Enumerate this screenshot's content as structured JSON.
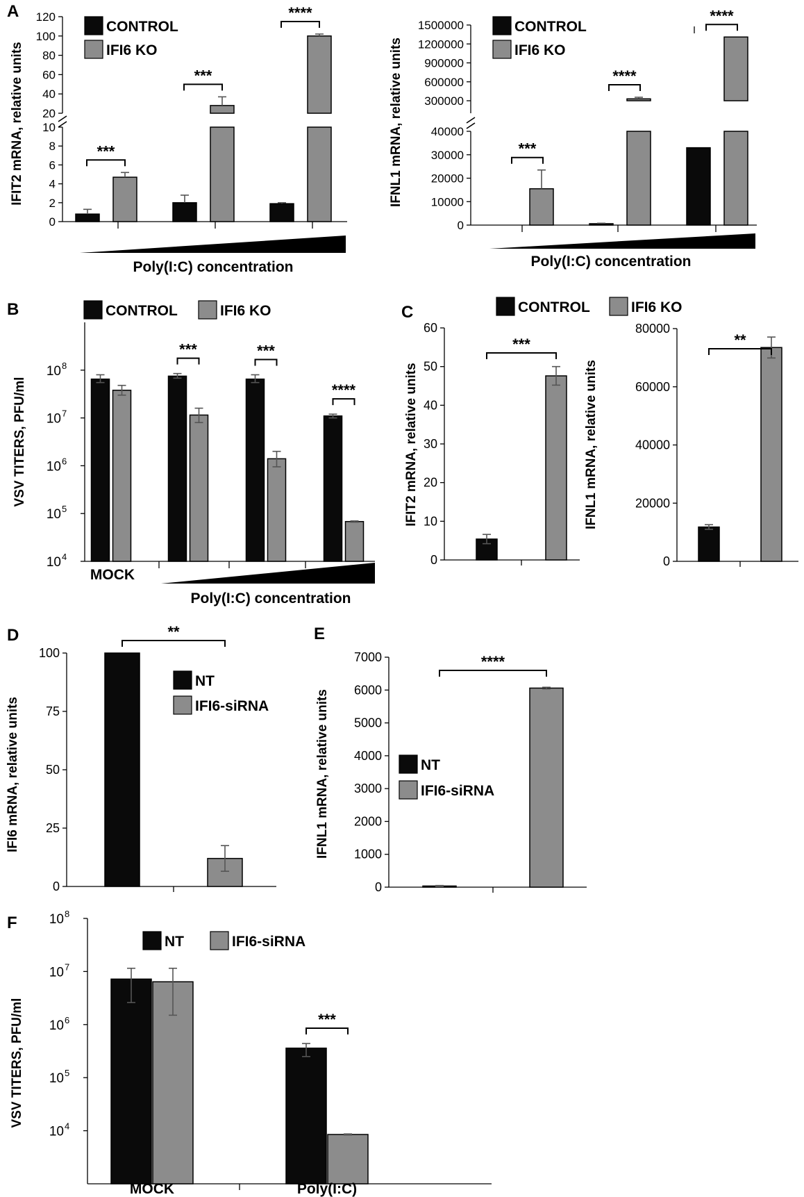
{
  "chart_data": [
    {
      "panel": "A",
      "type": "bar",
      "axis_break": true,
      "ylabel": "IFIT2 mRNA, relative units",
      "xlabel": "Poly(I:C) concentration",
      "yticks_lower": [
        "0",
        "2",
        "4",
        "6",
        "8",
        "10"
      ],
      "yticks_upper": [
        "20",
        "40",
        "60",
        "80",
        "100",
        "120"
      ],
      "legend": [
        "CONTROL",
        "IFI6 KO"
      ],
      "series": [
        {
          "name": "CONTROL",
          "values": [
            0.8,
            2.0,
            1.9
          ],
          "errors": [
            0.5,
            0.8,
            0.1
          ]
        },
        {
          "name": "IFI6 KO",
          "values": [
            4.7,
            28,
            100
          ],
          "errors": [
            0.5,
            9,
            2
          ]
        }
      ],
      "significance": [
        "***",
        "***",
        "****"
      ]
    },
    {
      "panel": "A",
      "type": "bar",
      "axis_break": true,
      "ylabel": "IFNL1 mRNA, relative units",
      "xlabel": "Poly(I:C) concentration",
      "yticks_lower": [
        "0",
        "10000",
        "20000",
        "30000",
        "40000"
      ],
      "yticks_upper": [
        "300000",
        "600000",
        "900000",
        "1200000",
        "1500000"
      ],
      "legend": [
        "CONTROL",
        "IFI6 KO"
      ],
      "series": [
        {
          "name": "CONTROL",
          "values": [
            0,
            600,
            33000
          ],
          "errors": [
            0,
            200,
            0
          ]
        },
        {
          "name": "IFI6 KO",
          "values": [
            15500,
            330000,
            1310000
          ],
          "errors": [
            8000,
            25000,
            0
          ]
        }
      ],
      "significance": [
        "***",
        "****",
        "****"
      ]
    },
    {
      "panel": "B",
      "type": "bar",
      "log_scale": true,
      "ylabel": "VSV TITERS, PFU/ml",
      "xlabel": "Poly(I:C) concentration",
      "categories": [
        "MOCK",
        "",
        "",
        ""
      ],
      "ytick_exponents": [
        "4",
        "5",
        "6",
        "7",
        "8"
      ],
      "ytick_base": "10",
      "ylim": [
        10000,
        1000000000
      ],
      "legend": [
        "CONTROL",
        "IFI6 KO"
      ],
      "series": [
        {
          "name": "CONTROL",
          "values": [
            65000000,
            75000000,
            65000000,
            11000000
          ],
          "errors_up": [
            80000000,
            85000000,
            80000000,
            12000000
          ],
          "errors_down": [
            55000000,
            68000000,
            55000000,
            10000000
          ]
        },
        {
          "name": "IFI6 KO",
          "values": [
            38000000,
            11500000,
            1400000,
            68000
          ],
          "errors_up": [
            48000000,
            16000000,
            2000000,
            70000
          ],
          "errors_down": [
            30000000,
            8000000,
            950000,
            66000
          ]
        }
      ],
      "significance": [
        "",
        "***",
        "***",
        "****"
      ]
    },
    {
      "panel": "C",
      "type": "bar",
      "ylabel": "IFIT2 mRNA, relative units",
      "yticks": [
        "0",
        "10",
        "20",
        "30",
        "40",
        "50",
        "60"
      ],
      "ylim": [
        0,
        60
      ],
      "legend": [
        "CONTROL",
        "IFI6 KO"
      ],
      "series": [
        {
          "name": "CONTROL",
          "values": [
            5.4
          ],
          "errors": [
            1.2
          ]
        },
        {
          "name": "IFI6 KO",
          "values": [
            47.6
          ],
          "errors": [
            2.4
          ]
        }
      ],
      "significance": "***"
    },
    {
      "panel": "C",
      "type": "bar",
      "ylabel": "IFNL1 mRNA, relative units",
      "yticks": [
        "0",
        "20000",
        "40000",
        "60000",
        "80000"
      ],
      "ylim": [
        0,
        80000
      ],
      "series": [
        {
          "name": "CONTROL",
          "values": [
            11800
          ],
          "errors": [
            800
          ]
        },
        {
          "name": "IFI6 KO",
          "values": [
            73500
          ],
          "errors": [
            3600
          ]
        }
      ],
      "significance": "**"
    },
    {
      "panel": "D",
      "type": "bar",
      "ylabel": "IFI6 mRNA, relative units",
      "yticks": [
        "0",
        "25",
        "50",
        "75",
        "100"
      ],
      "ylim": [
        0,
        100
      ],
      "legend": [
        "NT",
        "IFI6-siRNA"
      ],
      "series": [
        {
          "name": "NT",
          "values": [
            100
          ],
          "errors": [
            0
          ]
        },
        {
          "name": "IFI6-siRNA",
          "values": [
            12
          ],
          "errors": [
            5.5
          ]
        }
      ],
      "significance": "**"
    },
    {
      "panel": "E",
      "type": "bar",
      "ylabel": "IFNL1 mRNA, relative units",
      "yticks": [
        "0",
        "1000",
        "2000",
        "3000",
        "4000",
        "5000",
        "6000",
        "7000"
      ],
      "ylim": [
        0,
        7000
      ],
      "legend": [
        "NT",
        "IFI6-siRNA"
      ],
      "series": [
        {
          "name": "NT",
          "values": [
            35
          ],
          "errors": [
            15
          ]
        },
        {
          "name": "IFI6-siRNA",
          "values": [
            6060
          ],
          "errors": [
            25
          ]
        }
      ],
      "significance": "****"
    },
    {
      "panel": "F",
      "type": "bar",
      "log_scale": true,
      "ylabel": "VSV TITERS, PFU/ml",
      "categories": [
        "MOCK",
        "Poly(I:C)"
      ],
      "ytick_exponents": [
        "4",
        "5",
        "6",
        "7",
        "8"
      ],
      "ytick_base": "10",
      "ylim": [
        1000,
        100000000
      ],
      "legend": [
        "NT",
        "IFI6-siRNA"
      ],
      "series": [
        {
          "name": "NT",
          "values": [
            7200000,
            360000
          ],
          "errors_up": [
            11500000,
            440000
          ],
          "errors_down": [
            2600000,
            250000
          ]
        },
        {
          "name": "IFI6-siRNA",
          "values": [
            6400000,
            8500
          ],
          "errors_up": [
            11500000,
            8700
          ],
          "errors_down": [
            1500000,
            8300
          ]
        }
      ],
      "significance": [
        "",
        "***"
      ]
    }
  ],
  "colors": {
    "control": "#0a0a0a",
    "ko": "#8c8c8c",
    "error_bar": "#555555",
    "axis": "#000000"
  }
}
